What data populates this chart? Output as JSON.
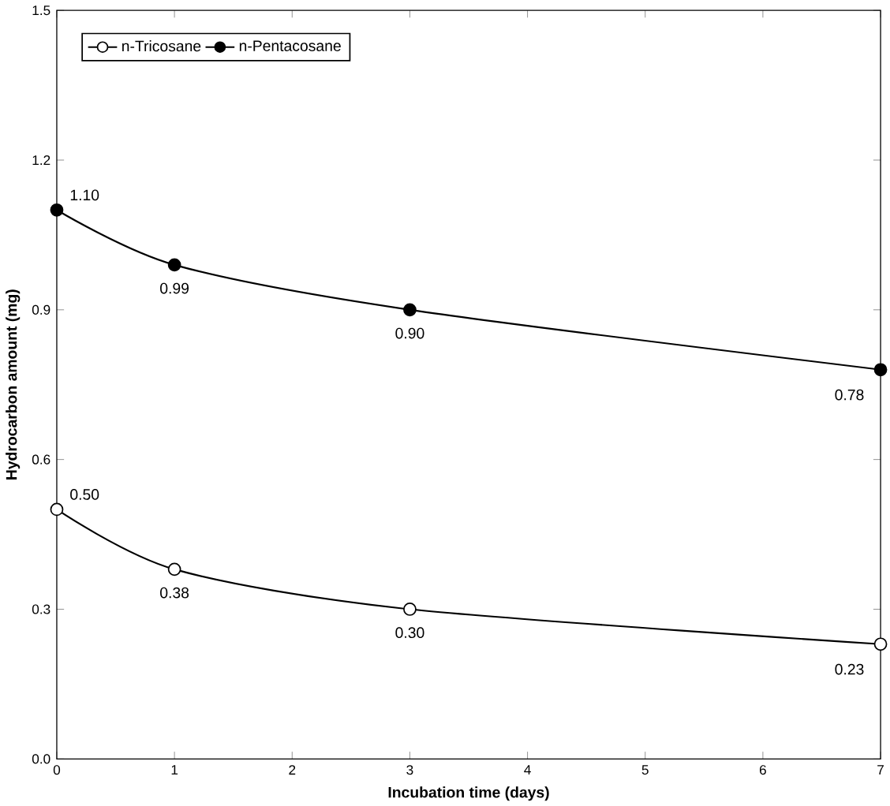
{
  "chart_data": {
    "type": "line",
    "xlabel": "Incubation time (days)",
    "ylabel": "Hydrocarbon amount (mg)",
    "x": [
      0,
      1,
      3,
      7
    ],
    "series": [
      {
        "name": "n-Tricosane",
        "color": "#000000",
        "values": [
          0.5,
          0.38,
          0.3,
          0.23
        ],
        "value_labels": [
          "0.50",
          "0.38",
          "0.30",
          "0.23"
        ]
      },
      {
        "name": "n-Pentacosane",
        "color": "#000000",
        "values": [
          1.1,
          0.99,
          0.9,
          0.78
        ],
        "value_labels": [
          "1.10",
          "0.99",
          "0.90",
          "0.78"
        ]
      }
    ],
    "xlim": [
      0,
      7
    ],
    "xticks": [
      0,
      1,
      2,
      3,
      4,
      5,
      6,
      7
    ],
    "ylim": [
      0,
      1.5
    ],
    "yticks": [
      {
        "value": 0,
        "label": "0.0"
      },
      {
        "value": 0.3,
        "label": "0.3"
      },
      {
        "value": 0.6,
        "label": "0.6"
      },
      {
        "value": 0.9,
        "label": "0.9"
      },
      {
        "value": 1.2,
        "label": "1.2"
      },
      {
        "value": 1.5,
        "label": "1.5"
      }
    ],
    "legend": "top left",
    "marker": "circle",
    "line_style": "solid",
    "grid": false
  }
}
